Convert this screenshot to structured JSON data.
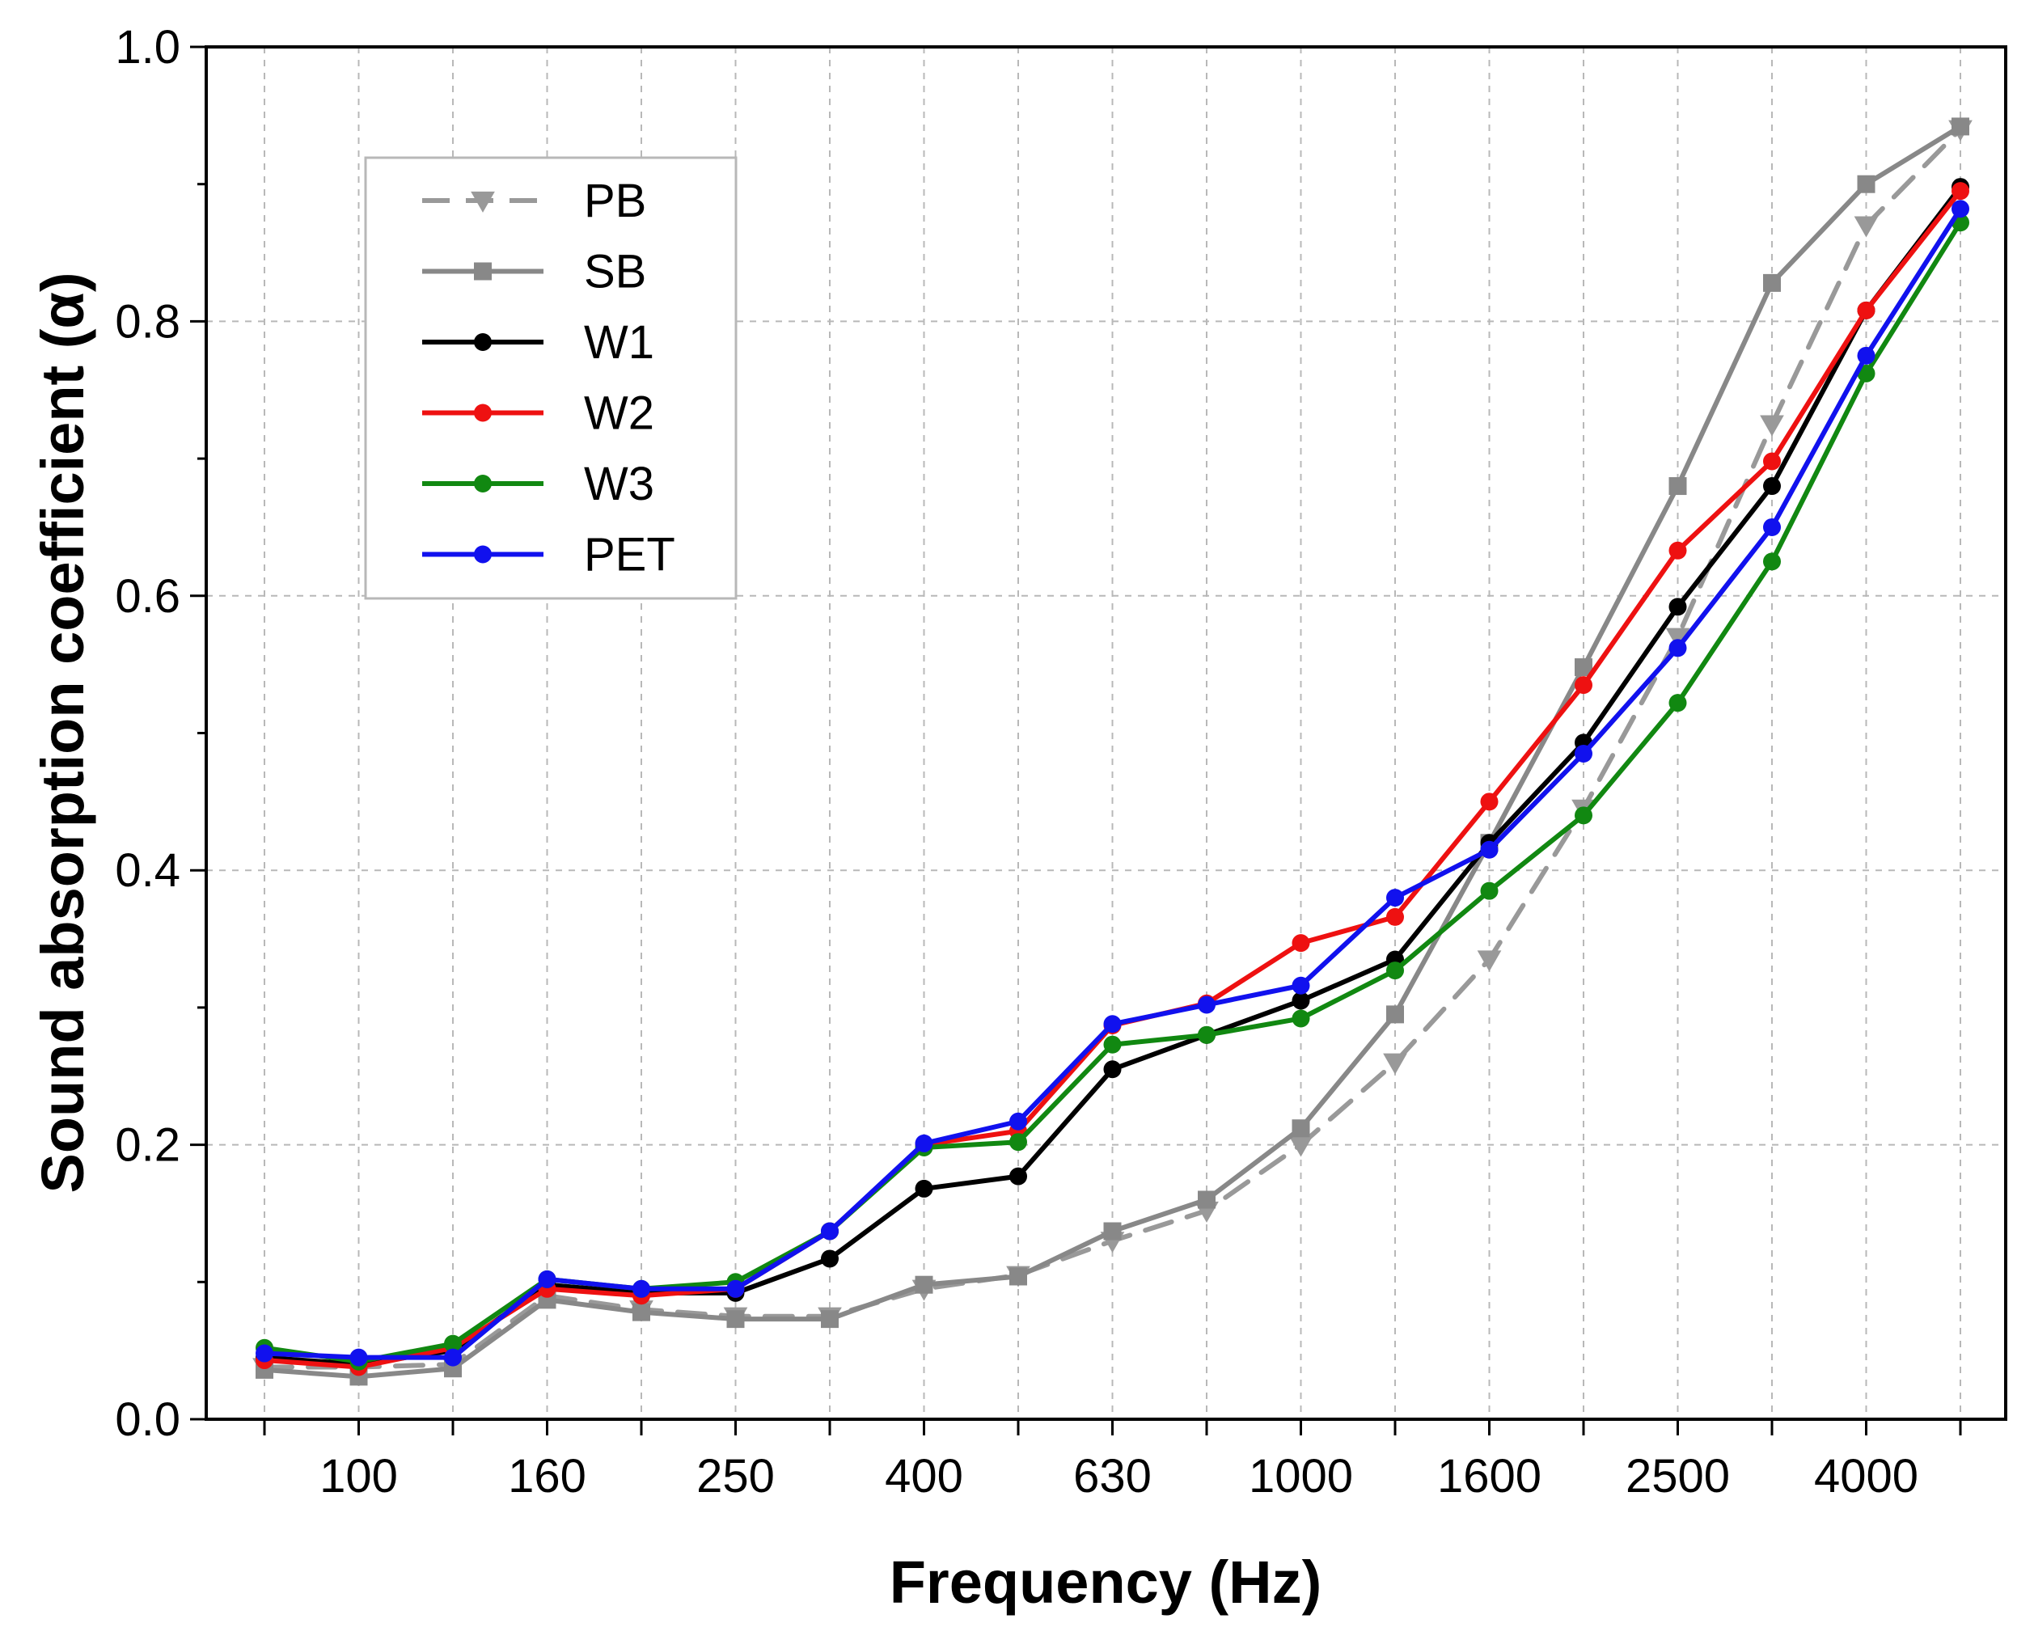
{
  "chart_data": {
    "type": "line",
    "xlabel": "Frequency (Hz)",
    "ylabel": "Sound absorption coefficient (α)",
    "x": [
      80,
      100,
      125,
      160,
      200,
      250,
      315,
      400,
      500,
      630,
      800,
      1000,
      1250,
      1600,
      2000,
      2500,
      3150,
      4000,
      5000
    ],
    "x_tick_labels": [
      "100",
      "160",
      "250",
      "400",
      "630",
      "1000",
      "1600",
      "2500",
      "4000"
    ],
    "x_scale": "log (one-third octave bands)",
    "ylim": [
      0.0,
      1.0
    ],
    "y_ticks": [
      "0.0",
      "0.2",
      "0.4",
      "0.6",
      "0.8",
      "1.0"
    ],
    "grid": true,
    "legend_position": "top-left",
    "series": [
      {
        "name": "PB",
        "color": "#999999",
        "marker": "triangle-down",
        "line_style": "dashed",
        "values": [
          0.038,
          0.038,
          0.04,
          0.09,
          0.08,
          0.075,
          0.075,
          0.095,
          0.105,
          0.13,
          0.152,
          0.2,
          0.26,
          0.335,
          0.445,
          0.57,
          0.725,
          0.87,
          0.94
        ]
      },
      {
        "name": "SB",
        "color": "#888888",
        "marker": "square",
        "line_style": "solid",
        "values": [
          0.036,
          0.031,
          0.037,
          0.087,
          0.078,
          0.073,
          0.073,
          0.098,
          0.104,
          0.137,
          0.16,
          0.212,
          0.295,
          0.42,
          0.548,
          0.68,
          0.828,
          0.9,
          0.942
        ]
      },
      {
        "name": "W1",
        "color": "#000000",
        "marker": "circle",
        "line_style": "solid",
        "values": [
          0.045,
          0.04,
          0.05,
          0.098,
          0.092,
          0.092,
          0.117,
          0.168,
          0.177,
          0.255,
          0.28,
          0.305,
          0.335,
          0.42,
          0.493,
          0.592,
          0.68,
          0.808,
          0.898
        ]
      },
      {
        "name": "W2",
        "color": "#ee1111",
        "marker": "circle",
        "line_style": "solid",
        "values": [
          0.043,
          0.038,
          0.052,
          0.095,
          0.09,
          0.095,
          0.137,
          0.2,
          0.21,
          0.287,
          0.303,
          0.347,
          0.366,
          0.45,
          0.535,
          0.633,
          0.698,
          0.808,
          0.895
        ]
      },
      {
        "name": "W3",
        "color": "#118811",
        "marker": "circle",
        "line_style": "solid",
        "values": [
          0.052,
          0.042,
          0.055,
          0.102,
          0.095,
          0.1,
          0.137,
          0.198,
          0.202,
          0.273,
          0.28,
          0.292,
          0.327,
          0.385,
          0.44,
          0.522,
          0.625,
          0.762,
          0.872
        ]
      },
      {
        "name": "PET",
        "color": "#1111ee",
        "marker": "circle",
        "line_style": "solid",
        "values": [
          0.048,
          0.045,
          0.045,
          0.102,
          0.095,
          0.095,
          0.137,
          0.201,
          0.217,
          0.288,
          0.302,
          0.316,
          0.38,
          0.415,
          0.485,
          0.562,
          0.65,
          0.775,
          0.882
        ]
      }
    ]
  }
}
